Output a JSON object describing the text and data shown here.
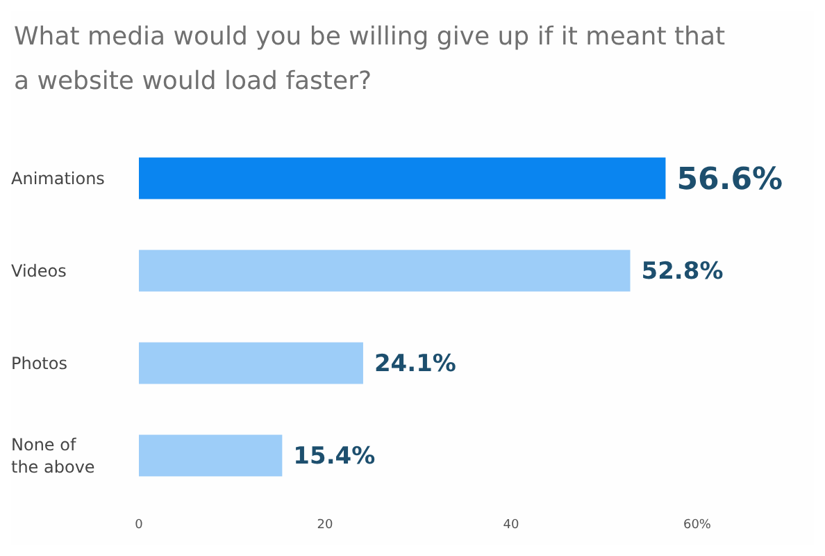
{
  "chart_data": {
    "type": "bar",
    "orientation": "horizontal",
    "title": "What media would you be willing give up if it meant that a website would load faster?",
    "categories": [
      "Animations",
      "Videos",
      "Photos",
      "None of the above"
    ],
    "values": [
      56.6,
      52.8,
      24.1,
      15.4
    ],
    "value_labels": [
      "56.6%",
      "52.8%",
      "24.1%",
      "15.4%"
    ],
    "colors": [
      "#0a85f0",
      "#9dcdf8",
      "#9dcdf8",
      "#9dcdf8"
    ],
    "xlim": [
      0,
      60
    ],
    "xticks": [
      0,
      20,
      40,
      {
        "value": 60,
        "label": "60%"
      }
    ]
  }
}
